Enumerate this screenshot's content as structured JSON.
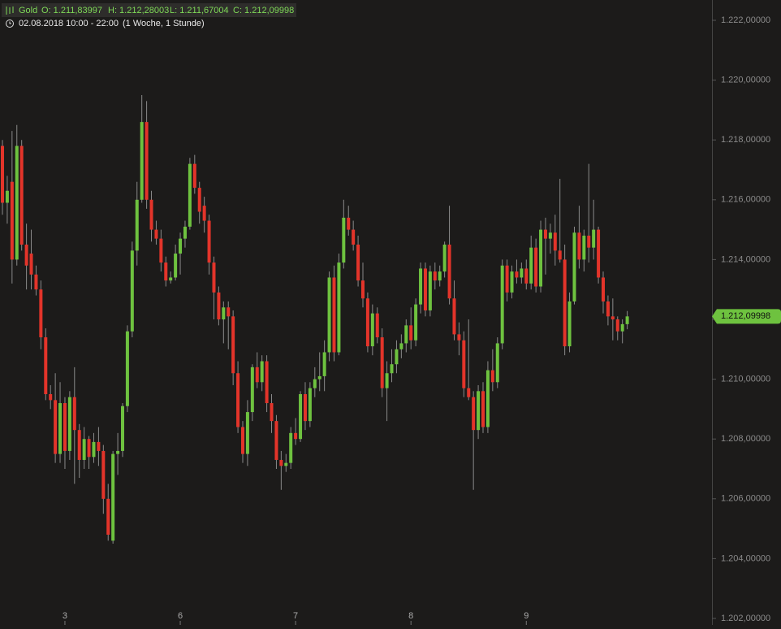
{
  "chart_data": {
    "type": "candlestick",
    "header": {
      "symbol": "Gold",
      "open": "O: 1.211,83997",
      "high": "H: 1.212,28003",
      "low": "L: 1.211,67004",
      "close": "C: 1.212,09998",
      "period": "02.08.2018 10:00 - 22:00",
      "interval": "(1 Woche, 1 Stunde)"
    },
    "up_color": "#6ec23f",
    "down_color": "#e3342a",
    "ylim": [
      1202,
      1222
    ],
    "yticks": [
      {
        "value": 1202,
        "label": "1.202,00000"
      },
      {
        "value": 1204,
        "label": "1.204,00000"
      },
      {
        "value": 1206,
        "label": "1.206,00000"
      },
      {
        "value": 1208,
        "label": "1.208,00000"
      },
      {
        "value": 1210,
        "label": "1.210,00000"
      },
      {
        "value": 1212,
        "label": "1.212,00000"
      },
      {
        "value": 1214,
        "label": "1.214,00000"
      },
      {
        "value": 1216,
        "label": "1.216,00000"
      },
      {
        "value": 1218,
        "label": "1.218,00000"
      },
      {
        "value": 1220,
        "label": "1.220,00000"
      },
      {
        "value": 1222,
        "label": "1.222,00000"
      }
    ],
    "last_price": {
      "value": 1212.09998,
      "label": "1.212,09998"
    },
    "categories": [
      null,
      null,
      null,
      null,
      null,
      null,
      null,
      null,
      null,
      null,
      null,
      null,
      null,
      "3",
      null,
      null,
      null,
      null,
      null,
      null,
      null,
      null,
      null,
      null,
      null,
      null,
      null,
      null,
      null,
      null,
      null,
      null,
      null,
      null,
      null,
      null,
      null,
      "6",
      null,
      null,
      null,
      null,
      null,
      null,
      null,
      null,
      null,
      null,
      null,
      null,
      null,
      null,
      null,
      null,
      null,
      null,
      null,
      null,
      null,
      null,
      null,
      "7",
      null,
      null,
      null,
      null,
      null,
      null,
      null,
      null,
      null,
      null,
      null,
      null,
      null,
      null,
      null,
      null,
      null,
      null,
      null,
      null,
      null,
      null,
      null,
      "8",
      null,
      null,
      null,
      null,
      null,
      null,
      null,
      null,
      null,
      null,
      null,
      null,
      null,
      null,
      null,
      null,
      null,
      null,
      null,
      null,
      null,
      null,
      null,
      "9",
      null,
      null,
      null,
      null,
      null,
      null,
      null,
      null,
      null,
      null,
      null,
      null,
      null,
      null,
      null,
      null,
      null,
      null,
      null,
      null,
      null
    ],
    "candles": [
      {
        "o": 1217.8,
        "h": 1218.0,
        "l": 1215.5,
        "c": 1215.9
      },
      {
        "o": 1215.9,
        "h": 1216.8,
        "l": 1215.2,
        "c": 1216.3
      },
      {
        "o": 1216.6,
        "h": 1218.3,
        "l": 1213.2,
        "c": 1214.0
      },
      {
        "o": 1214.0,
        "h": 1218.5,
        "l": 1213.8,
        "c": 1217.8
      },
      {
        "o": 1217.8,
        "h": 1218.0,
        "l": 1214.3,
        "c": 1214.5
      },
      {
        "o": 1214.5,
        "h": 1215.2,
        "l": 1213.0,
        "c": 1213.8
      },
      {
        "o": 1214.2,
        "h": 1215.0,
        "l": 1213.0,
        "c": 1213.5
      },
      {
        "o": 1213.5,
        "h": 1213.8,
        "l": 1212.8,
        "c": 1213.0
      },
      {
        "o": 1213.0,
        "h": 1213.3,
        "l": 1211.0,
        "c": 1211.4
      },
      {
        "o": 1211.4,
        "h": 1211.7,
        "l": 1209.3,
        "c": 1209.5
      },
      {
        "o": 1209.5,
        "h": 1209.8,
        "l": 1209.0,
        "c": 1209.3
      },
      {
        "o": 1209.3,
        "h": 1210.2,
        "l": 1207.2,
        "c": 1207.5
      },
      {
        "o": 1207.5,
        "h": 1209.9,
        "l": 1207.2,
        "c": 1209.2
      },
      {
        "o": 1209.2,
        "h": 1209.4,
        "l": 1207.0,
        "c": 1207.6
      },
      {
        "o": 1207.6,
        "h": 1209.6,
        "l": 1207.3,
        "c": 1209.4
      },
      {
        "o": 1209.4,
        "h": 1210.4,
        "l": 1206.5,
        "c": 1208.3
      },
      {
        "o": 1208.3,
        "h": 1208.5,
        "l": 1206.7,
        "c": 1207.3
      },
      {
        "o": 1207.3,
        "h": 1208.4,
        "l": 1207.0,
        "c": 1208.0
      },
      {
        "o": 1208.0,
        "h": 1208.1,
        "l": 1207.0,
        "c": 1207.4
      },
      {
        "o": 1207.4,
        "h": 1208.2,
        "l": 1207.2,
        "c": 1207.9
      },
      {
        "o": 1207.9,
        "h": 1208.4,
        "l": 1207.1,
        "c": 1207.6
      },
      {
        "o": 1207.6,
        "h": 1207.8,
        "l": 1205.5,
        "c": 1206.0
      },
      {
        "o": 1206.0,
        "h": 1206.5,
        "l": 1204.6,
        "c": 1204.8
      },
      {
        "o": 1204.6,
        "h": 1207.6,
        "l": 1204.5,
        "c": 1207.5
      },
      {
        "o": 1207.5,
        "h": 1208.2,
        "l": 1206.8,
        "c": 1207.6
      },
      {
        "o": 1207.6,
        "h": 1209.2,
        "l": 1207.4,
        "c": 1209.1
      },
      {
        "o": 1209.1,
        "h": 1211.8,
        "l": 1208.9,
        "c": 1211.6
      },
      {
        "o": 1211.6,
        "h": 1214.6,
        "l": 1211.4,
        "c": 1214.3
      },
      {
        "o": 1214.3,
        "h": 1216.6,
        "l": 1213.8,
        "c": 1216.0
      },
      {
        "o": 1216.0,
        "h": 1219.5,
        "l": 1215.9,
        "c": 1218.6
      },
      {
        "o": 1218.6,
        "h": 1219.3,
        "l": 1215.7,
        "c": 1216.0
      },
      {
        "o": 1216.0,
        "h": 1216.3,
        "l": 1214.6,
        "c": 1215.0
      },
      {
        "o": 1215.0,
        "h": 1215.3,
        "l": 1214.5,
        "c": 1214.7
      },
      {
        "o": 1214.7,
        "h": 1215.0,
        "l": 1213.6,
        "c": 1213.9
      },
      {
        "o": 1213.9,
        "h": 1214.1,
        "l": 1213.1,
        "c": 1213.3
      },
      {
        "o": 1213.3,
        "h": 1213.6,
        "l": 1213.2,
        "c": 1213.4
      },
      {
        "o": 1213.4,
        "h": 1214.5,
        "l": 1213.3,
        "c": 1214.2
      },
      {
        "o": 1214.2,
        "h": 1214.9,
        "l": 1213.5,
        "c": 1214.7
      },
      {
        "o": 1214.7,
        "h": 1215.3,
        "l": 1214.4,
        "c": 1215.1
      },
      {
        "o": 1215.1,
        "h": 1217.4,
        "l": 1215.0,
        "c": 1217.2
      },
      {
        "o": 1217.2,
        "h": 1217.5,
        "l": 1216.2,
        "c": 1216.4
      },
      {
        "o": 1216.4,
        "h": 1216.6,
        "l": 1215.2,
        "c": 1215.6
      },
      {
        "o": 1215.8,
        "h": 1216.1,
        "l": 1214.9,
        "c": 1215.3
      },
      {
        "o": 1215.3,
        "h": 1215.5,
        "l": 1213.5,
        "c": 1213.9
      },
      {
        "o": 1213.9,
        "h": 1214.1,
        "l": 1212.0,
        "c": 1212.9
      },
      {
        "o": 1212.9,
        "h": 1213.1,
        "l": 1211.8,
        "c": 1212.0
      },
      {
        "o": 1212.0,
        "h": 1212.6,
        "l": 1211.2,
        "c": 1212.4
      },
      {
        "o": 1212.4,
        "h": 1212.6,
        "l": 1211.0,
        "c": 1212.1
      },
      {
        "o": 1212.1,
        "h": 1212.3,
        "l": 1209.8,
        "c": 1210.2
      },
      {
        "o": 1210.2,
        "h": 1210.6,
        "l": 1208.2,
        "c": 1208.4
      },
      {
        "o": 1208.4,
        "h": 1208.6,
        "l": 1207.2,
        "c": 1207.5
      },
      {
        "o": 1207.5,
        "h": 1209.3,
        "l": 1207.1,
        "c": 1208.9
      },
      {
        "o": 1208.9,
        "h": 1210.5,
        "l": 1208.6,
        "c": 1210.4
      },
      {
        "o": 1210.4,
        "h": 1210.9,
        "l": 1209.7,
        "c": 1209.9
      },
      {
        "o": 1209.9,
        "h": 1210.8,
        "l": 1209.6,
        "c": 1210.6
      },
      {
        "o": 1210.6,
        "h": 1210.8,
        "l": 1208.9,
        "c": 1209.2
      },
      {
        "o": 1209.2,
        "h": 1209.5,
        "l": 1208.2,
        "c": 1208.6
      },
      {
        "o": 1208.6,
        "h": 1208.8,
        "l": 1207.0,
        "c": 1207.3
      },
      {
        "o": 1207.3,
        "h": 1207.6,
        "l": 1206.3,
        "c": 1207.1
      },
      {
        "o": 1207.1,
        "h": 1207.5,
        "l": 1206.9,
        "c": 1207.2
      },
      {
        "o": 1207.2,
        "h": 1208.4,
        "l": 1207.0,
        "c": 1208.2
      },
      {
        "o": 1208.2,
        "h": 1208.7,
        "l": 1207.8,
        "c": 1208.0
      },
      {
        "o": 1208.0,
        "h": 1209.6,
        "l": 1207.9,
        "c": 1209.5
      },
      {
        "o": 1209.5,
        "h": 1209.9,
        "l": 1208.3,
        "c": 1208.6
      },
      {
        "o": 1208.6,
        "h": 1209.9,
        "l": 1208.4,
        "c": 1209.7
      },
      {
        "o": 1209.7,
        "h": 1210.4,
        "l": 1209.4,
        "c": 1210.0
      },
      {
        "o": 1210.0,
        "h": 1210.9,
        "l": 1209.6,
        "c": 1210.1
      },
      {
        "o": 1210.1,
        "h": 1211.3,
        "l": 1209.6,
        "c": 1210.9
      },
      {
        "o": 1210.9,
        "h": 1213.6,
        "l": 1210.6,
        "c": 1213.4
      },
      {
        "o": 1213.4,
        "h": 1213.8,
        "l": 1210.6,
        "c": 1210.9
      },
      {
        "o": 1210.9,
        "h": 1214.2,
        "l": 1210.8,
        "c": 1213.9
      },
      {
        "o": 1213.9,
        "h": 1216.0,
        "l": 1213.7,
        "c": 1215.4
      },
      {
        "o": 1215.4,
        "h": 1215.8,
        "l": 1214.8,
        "c": 1215.0
      },
      {
        "o": 1215.0,
        "h": 1215.3,
        "l": 1214.3,
        "c": 1214.5
      },
      {
        "o": 1214.5,
        "h": 1214.8,
        "l": 1213.1,
        "c": 1213.3
      },
      {
        "o": 1213.3,
        "h": 1213.9,
        "l": 1212.4,
        "c": 1212.7
      },
      {
        "o": 1212.7,
        "h": 1212.9,
        "l": 1210.9,
        "c": 1211.1
      },
      {
        "o": 1211.1,
        "h": 1212.5,
        "l": 1210.8,
        "c": 1212.2
      },
      {
        "o": 1212.2,
        "h": 1212.4,
        "l": 1211.2,
        "c": 1211.4
      },
      {
        "o": 1211.4,
        "h": 1211.7,
        "l": 1209.4,
        "c": 1209.7
      },
      {
        "o": 1209.7,
        "h": 1210.6,
        "l": 1208.6,
        "c": 1210.2
      },
      {
        "o": 1210.2,
        "h": 1211.0,
        "l": 1209.9,
        "c": 1210.5
      },
      {
        "o": 1210.5,
        "h": 1211.3,
        "l": 1210.2,
        "c": 1211.0
      },
      {
        "o": 1211.0,
        "h": 1211.5,
        "l": 1210.7,
        "c": 1211.2
      },
      {
        "o": 1211.2,
        "h": 1212.0,
        "l": 1210.9,
        "c": 1211.8
      },
      {
        "o": 1211.8,
        "h": 1212.4,
        "l": 1211.0,
        "c": 1211.3
      },
      {
        "o": 1211.3,
        "h": 1212.7,
        "l": 1211.1,
        "c": 1212.5
      },
      {
        "o": 1212.5,
        "h": 1213.9,
        "l": 1212.2,
        "c": 1213.7
      },
      {
        "o": 1213.7,
        "h": 1213.9,
        "l": 1212.1,
        "c": 1212.3
      },
      {
        "o": 1212.3,
        "h": 1213.8,
        "l": 1212.1,
        "c": 1213.6
      },
      {
        "o": 1213.6,
        "h": 1213.9,
        "l": 1213.0,
        "c": 1213.3
      },
      {
        "o": 1213.3,
        "h": 1213.8,
        "l": 1213.1,
        "c": 1213.6
      },
      {
        "o": 1213.6,
        "h": 1214.6,
        "l": 1213.4,
        "c": 1214.5
      },
      {
        "o": 1214.5,
        "h": 1215.8,
        "l": 1212.5,
        "c": 1212.7
      },
      {
        "o": 1212.7,
        "h": 1213.3,
        "l": 1211.3,
        "c": 1211.5
      },
      {
        "o": 1211.5,
        "h": 1211.9,
        "l": 1210.8,
        "c": 1211.3
      },
      {
        "o": 1211.3,
        "h": 1211.6,
        "l": 1209.4,
        "c": 1209.7
      },
      {
        "o": 1209.7,
        "h": 1212.0,
        "l": 1209.3,
        "c": 1209.4
      },
      {
        "o": 1209.4,
        "h": 1209.6,
        "l": 1206.3,
        "c": 1208.3
      },
      {
        "o": 1208.3,
        "h": 1209.8,
        "l": 1208.0,
        "c": 1209.6
      },
      {
        "o": 1209.6,
        "h": 1209.9,
        "l": 1208.2,
        "c": 1208.4
      },
      {
        "o": 1208.4,
        "h": 1210.6,
        "l": 1208.2,
        "c": 1210.3
      },
      {
        "o": 1210.3,
        "h": 1211.0,
        "l": 1209.6,
        "c": 1209.9
      },
      {
        "o": 1209.9,
        "h": 1211.4,
        "l": 1209.7,
        "c": 1211.2
      },
      {
        "o": 1211.2,
        "h": 1214.0,
        "l": 1211.0,
        "c": 1213.8
      },
      {
        "o": 1213.8,
        "h": 1214.0,
        "l": 1212.6,
        "c": 1212.9
      },
      {
        "o": 1212.9,
        "h": 1213.8,
        "l": 1212.7,
        "c": 1213.6
      },
      {
        "o": 1213.6,
        "h": 1214.0,
        "l": 1213.2,
        "c": 1213.4
      },
      {
        "o": 1213.4,
        "h": 1213.9,
        "l": 1213.2,
        "c": 1213.7
      },
      {
        "o": 1213.7,
        "h": 1214.0,
        "l": 1213.0,
        "c": 1213.2
      },
      {
        "o": 1213.2,
        "h": 1214.8,
        "l": 1213.0,
        "c": 1214.4
      },
      {
        "o": 1214.4,
        "h": 1214.7,
        "l": 1212.9,
        "c": 1213.1
      },
      {
        "o": 1213.1,
        "h": 1215.3,
        "l": 1212.9,
        "c": 1215.0
      },
      {
        "o": 1215.0,
        "h": 1215.4,
        "l": 1213.5,
        "c": 1214.7
      },
      {
        "o": 1214.7,
        "h": 1215.2,
        "l": 1214.2,
        "c": 1214.9
      },
      {
        "o": 1214.9,
        "h": 1215.5,
        "l": 1213.8,
        "c": 1214.3
      },
      {
        "o": 1214.3,
        "h": 1216.7,
        "l": 1213.9,
        "c": 1214.0
      },
      {
        "o": 1214.0,
        "h": 1214.5,
        "l": 1210.8,
        "c": 1211.1
      },
      {
        "o": 1211.1,
        "h": 1212.9,
        "l": 1210.9,
        "c": 1212.6
      },
      {
        "o": 1212.6,
        "h": 1215.1,
        "l": 1212.5,
        "c": 1214.9
      },
      {
        "o": 1214.9,
        "h": 1215.8,
        "l": 1213.7,
        "c": 1214.0
      },
      {
        "o": 1214.0,
        "h": 1215.0,
        "l": 1213.6,
        "c": 1214.8
      },
      {
        "o": 1214.8,
        "h": 1217.2,
        "l": 1213.9,
        "c": 1214.4
      },
      {
        "o": 1214.4,
        "h": 1216.0,
        "l": 1214.0,
        "c": 1215.0
      },
      {
        "o": 1215.0,
        "h": 1215.1,
        "l": 1213.2,
        "c": 1213.4
      },
      {
        "o": 1213.4,
        "h": 1213.6,
        "l": 1212.2,
        "c": 1212.6
      },
      {
        "o": 1212.6,
        "h": 1212.8,
        "l": 1211.8,
        "c": 1212.1
      },
      {
        "o": 1212.1,
        "h": 1212.7,
        "l": 1211.3,
        "c": 1212.0
      },
      {
        "o": 1212.0,
        "h": 1212.1,
        "l": 1211.3,
        "c": 1211.6
      },
      {
        "o": 1211.6,
        "h": 1212.0,
        "l": 1211.2,
        "c": 1211.84
      },
      {
        "o": 1211.83997,
        "h": 1212.28003,
        "l": 1211.67004,
        "c": 1212.09998
      }
    ]
  }
}
